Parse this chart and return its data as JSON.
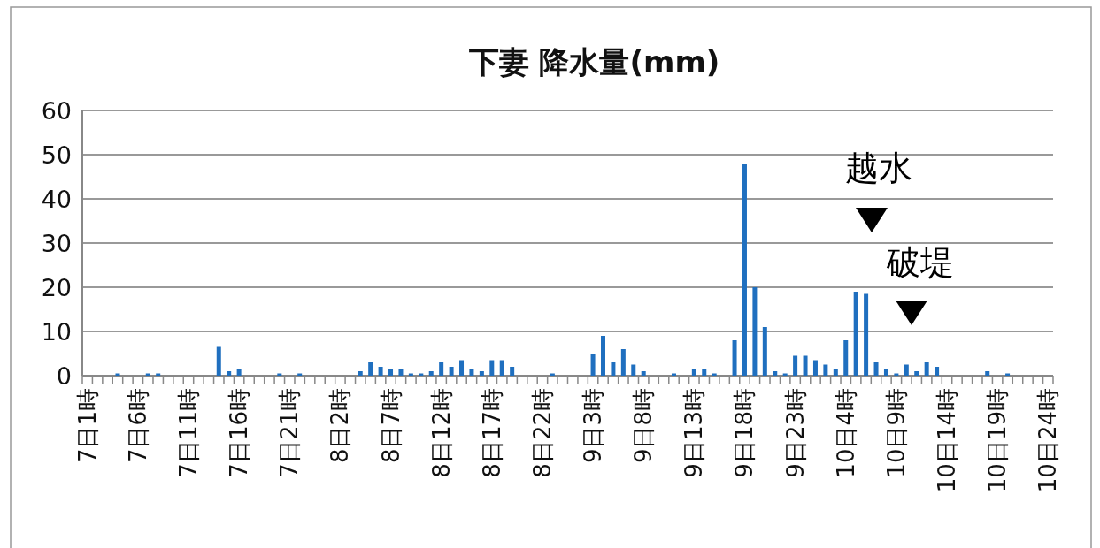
{
  "chart_data": {
    "type": "bar",
    "title": "下妻 降水量(mm)",
    "categories": [
      "7日1時",
      null,
      null,
      null,
      null,
      "7日6時",
      null,
      null,
      null,
      null,
      "7日11時",
      null,
      null,
      null,
      null,
      "7日16時",
      null,
      null,
      null,
      null,
      "7日21時",
      null,
      null,
      null,
      null,
      "8日2時",
      null,
      null,
      null,
      null,
      "8日7時",
      null,
      null,
      null,
      null,
      "8日12時",
      null,
      null,
      null,
      null,
      "8日17時",
      null,
      null,
      null,
      null,
      "8日22時",
      null,
      null,
      null,
      null,
      "9日3時",
      null,
      null,
      null,
      null,
      "9日8時",
      null,
      null,
      null,
      null,
      "9日13時",
      null,
      null,
      null,
      null,
      "9日18時",
      null,
      null,
      null,
      null,
      "9日23時",
      null,
      null,
      null,
      null,
      "10日4時",
      null,
      null,
      null,
      null,
      "10日9時",
      null,
      null,
      null,
      null,
      "10日14時",
      null,
      null,
      null,
      null,
      "10日19時",
      null,
      null,
      null,
      null,
      "10日24時"
    ],
    "values": [
      0,
      0,
      0,
      0.5,
      0,
      0,
      0.5,
      0.5,
      0,
      0,
      0,
      0,
      0,
      6.5,
      1,
      1.5,
      0,
      0,
      0,
      0.5,
      0,
      0.5,
      0,
      0,
      0,
      0,
      0,
      1,
      3,
      2,
      1.5,
      1.5,
      0.5,
      0.5,
      1,
      3,
      2,
      3.5,
      1.5,
      1,
      3.5,
      3.5,
      2,
      0,
      0,
      0,
      0.5,
      0,
      0,
      0,
      5,
      9,
      3,
      6,
      2.5,
      1,
      0,
      0,
      0.5,
      0,
      1.5,
      1.5,
      0.5,
      0,
      8,
      48,
      20,
      11,
      1,
      0.5,
      4.5,
      4.5,
      3.5,
      2.5,
      1.5,
      8,
      19,
      18.5,
      3,
      1.5,
      0.5,
      2.5,
      1,
      3,
      2,
      0,
      0,
      0,
      0,
      1,
      0,
      0.5,
      0,
      0,
      0,
      0
    ],
    "color": "#1f6fbf",
    "ylim": [
      0,
      60
    ],
    "yticks": [
      0,
      10,
      20,
      30,
      40,
      50,
      60
    ],
    "grid": "y",
    "annotations": [
      "越水",
      "破堤"
    ]
  }
}
